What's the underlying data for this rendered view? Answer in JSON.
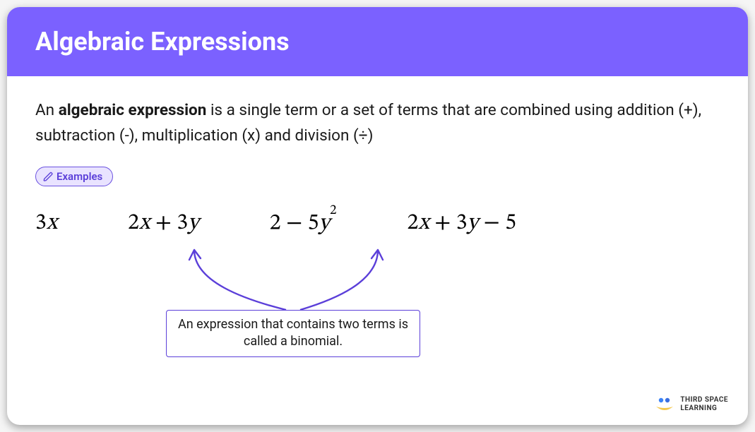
{
  "header": {
    "title": "Algebraic Expressions",
    "bg_color": "#7b61ff",
    "title_color": "#ffffff"
  },
  "definition": {
    "prefix": "An ",
    "bold": "algebraic expression",
    "rest": " is a single term or a set of terms that are combined using addition (+), subtraction (-), multiplication (x) and division (÷)"
  },
  "examples_label": "Examples",
  "pill": {
    "bg": "#e9e3ff",
    "border": "#6b52e0",
    "text_color": "#5b3fd9"
  },
  "expressions": [
    {
      "html": "<span class='n'>3</span>x"
    },
    {
      "html": "<span class='n'>2</span>x <span class='n'>+ 3</span>y"
    },
    {
      "html": "<span class='n'>2 − 5</span>y<sup>2</sup>"
    },
    {
      "html": "<span class='n'>2</span>x <span class='n'>+ 3</span>y <span class='n'>− 5</span>"
    }
  ],
  "callout": {
    "text": "An expression that contains two terms is called a binomial.",
    "border_color": "#5b3fd9",
    "arrow_color": "#5b3fd9"
  },
  "brand": {
    "line1": "THIRD SPACE",
    "line2": "LEARNING",
    "dot1": "#3b82f6",
    "dot2": "#3b6fe0",
    "swoosh": "#f5c84b"
  }
}
